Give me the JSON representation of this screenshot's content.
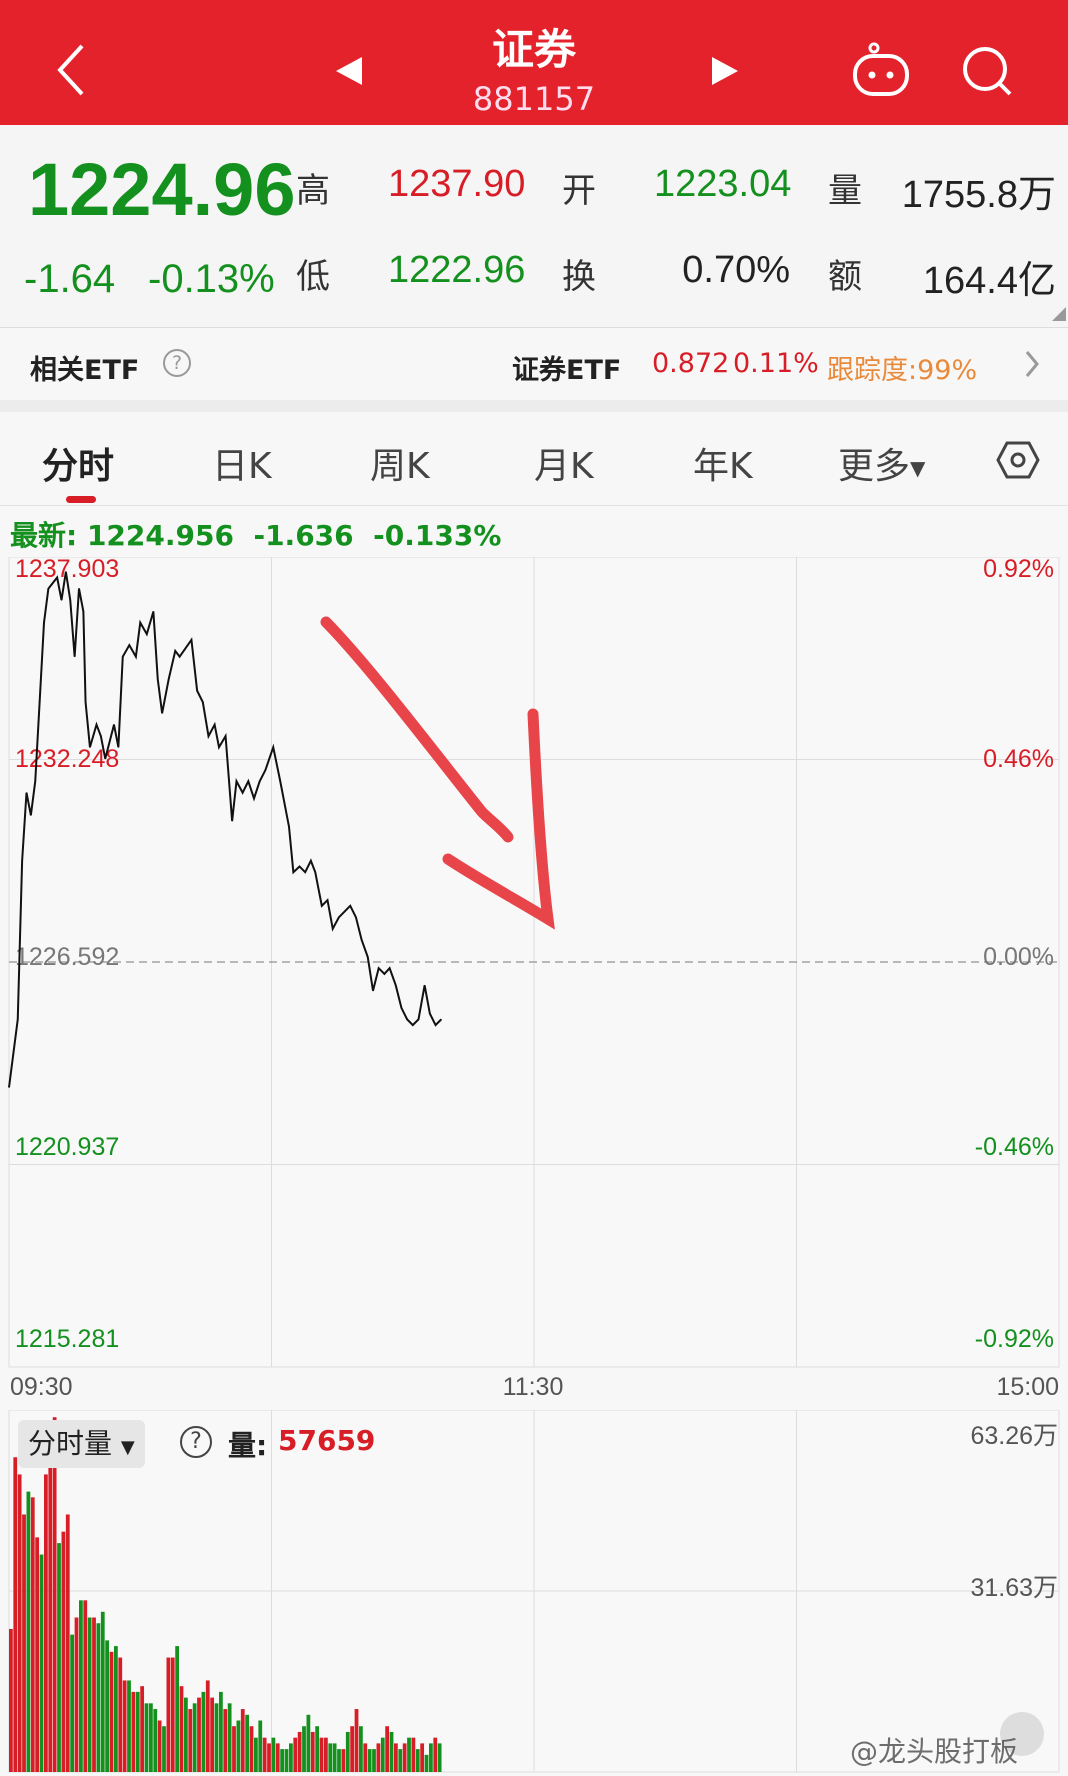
{
  "header": {
    "title": "证券",
    "code": "881157"
  },
  "quote": {
    "price": "1224.96",
    "change": "-1.64",
    "change_pct": "-0.13%",
    "high_label": "高",
    "high": "1237.90",
    "open_label": "开",
    "open": "1223.04",
    "vol_label": "量",
    "vol": "1755.8万",
    "low_label": "低",
    "low": "1222.96",
    "turnover_label": "换",
    "turnover": "0.70%",
    "amount_label": "额",
    "amount": "164.4亿"
  },
  "etf": {
    "label": "相关ETF",
    "name": "证券ETF",
    "price": "0.872",
    "pct": "0.11%",
    "tracking": "跟踪度:99%"
  },
  "tabs": [
    "分时",
    "日K",
    "周K",
    "月K",
    "年K",
    "更多"
  ],
  "latest": {
    "text": "最新: 1224.956  -1.636  -0.133%"
  },
  "chart_data": [
    {
      "type": "line",
      "y_ticks_left": [
        "1237.903",
        "1232.248",
        "1226.592",
        "1220.937",
        "1215.281"
      ],
      "y_ticks_right": [
        "0.92%",
        "0.46%",
        "0.00%",
        "-0.46%",
        "-0.92%"
      ],
      "ylim": [
        1215.281,
        1237.903
      ],
      "prev_close": 1226.592,
      "x_ticks": [
        "09:30",
        "11:30",
        "15:00"
      ],
      "xlim_minutes": [
        0,
        240
      ],
      "points": [
        [
          0,
          1223.09
        ],
        [
          2,
          1224.99
        ],
        [
          3,
          1229.42
        ],
        [
          4,
          1231.32
        ],
        [
          5,
          1230.69
        ],
        [
          6,
          1231.64
        ],
        [
          7,
          1233.85
        ],
        [
          8,
          1236.07
        ],
        [
          9,
          1237.02
        ],
        [
          11,
          1237.33
        ],
        [
          12,
          1236.7
        ],
        [
          13,
          1237.49
        ],
        [
          14,
          1236.7
        ],
        [
          15,
          1235.12
        ],
        [
          16,
          1237.02
        ],
        [
          17,
          1236.38
        ],
        [
          17.5,
          1233.85
        ],
        [
          18.5,
          1232.59
        ],
        [
          20,
          1233.22
        ],
        [
          21,
          1232.9
        ],
        [
          22,
          1232.27
        ],
        [
          24,
          1233.22
        ],
        [
          25,
          1232.59
        ],
        [
          26,
          1235.12
        ],
        [
          27.5,
          1235.44
        ],
        [
          29,
          1235.12
        ],
        [
          30,
          1236.07
        ],
        [
          31.5,
          1235.75
        ],
        [
          33,
          1236.38
        ],
        [
          34,
          1234.49
        ],
        [
          35,
          1233.54
        ],
        [
          36.5,
          1234.49
        ],
        [
          38,
          1235.28
        ],
        [
          39,
          1235.12
        ],
        [
          41.7,
          1235.59
        ],
        [
          43,
          1234.17
        ],
        [
          44.3,
          1233.85
        ],
        [
          45.6,
          1232.9
        ],
        [
          47,
          1233.22
        ],
        [
          48,
          1232.59
        ],
        [
          49.5,
          1232.9
        ],
        [
          51,
          1230.53
        ],
        [
          52,
          1231.64
        ],
        [
          53.4,
          1231.32
        ],
        [
          54.7,
          1231.64
        ],
        [
          56,
          1231.16
        ],
        [
          57.3,
          1231.64
        ],
        [
          58.6,
          1231.95
        ],
        [
          60.4,
          1232.59
        ],
        [
          62,
          1231.64
        ],
        [
          64,
          1230.37
        ],
        [
          65,
          1229.1
        ],
        [
          66.4,
          1229.26
        ],
        [
          67.7,
          1229.1
        ],
        [
          69,
          1229.42
        ],
        [
          70,
          1229.1
        ],
        [
          71.5,
          1228.16
        ],
        [
          72.8,
          1228.32
        ],
        [
          74,
          1227.52
        ],
        [
          75.4,
          1227.84
        ],
        [
          76.7,
          1228.0
        ],
        [
          78,
          1228.16
        ],
        [
          79.3,
          1227.84
        ],
        [
          80.6,
          1227.21
        ],
        [
          82,
          1226.73
        ],
        [
          83.2,
          1225.79
        ],
        [
          84.5,
          1226.42
        ],
        [
          85.8,
          1226.26
        ],
        [
          87,
          1226.42
        ],
        [
          88.4,
          1225.94
        ],
        [
          89.7,
          1225.31
        ],
        [
          91,
          1224.99
        ],
        [
          92.3,
          1224.83
        ],
        [
          93.6,
          1224.99
        ],
        [
          95,
          1225.94
        ],
        [
          96.2,
          1225.15
        ],
        [
          97.5,
          1224.83
        ],
        [
          98.8,
          1224.99
        ]
      ]
    },
    {
      "type": "bar",
      "title": "分时量",
      "current_label": "量:",
      "current_value": "57659",
      "y_ticks": [
        "63.26万",
        "31.63万"
      ],
      "ylim_wan": [
        0,
        63.26
      ],
      "values_wan": [
        25,
        55,
        52,
        45,
        49,
        48,
        41,
        38,
        52,
        56,
        62,
        40,
        42,
        45,
        24,
        27,
        30,
        30,
        27,
        27,
        26,
        28,
        23,
        21,
        22,
        20,
        16,
        16,
        14,
        14,
        15,
        12,
        12,
        11,
        9,
        8,
        20,
        20,
        22,
        15,
        13,
        11,
        12,
        13,
        14,
        16,
        13,
        12,
        14,
        11,
        12,
        8,
        9,
        11,
        10,
        8,
        6,
        9,
        6,
        5,
        6,
        5,
        4,
        4,
        5,
        6,
        7,
        8,
        10,
        7,
        8,
        6,
        6,
        5,
        5,
        4,
        4,
        7,
        8,
        11,
        8,
        5,
        4,
        4,
        5,
        6,
        8,
        7,
        5,
        4,
        5,
        6,
        6,
        4,
        5,
        3,
        5,
        6,
        5
      ],
      "directions": "rrrrgrrgrrrgrrgrgrgrgggrgrrgrgrgggrgrrgrgrgrgrrggrgrgrgrggrrgrgggrrggrgrrgggrgrrgrggrgrgrgrgrgrggr"
    }
  ],
  "colors": {
    "up": "#d71d26",
    "down": "#14901e",
    "header": "#e3222b",
    "annotation": "#e8454a"
  },
  "watermark": "@龙头股打板"
}
